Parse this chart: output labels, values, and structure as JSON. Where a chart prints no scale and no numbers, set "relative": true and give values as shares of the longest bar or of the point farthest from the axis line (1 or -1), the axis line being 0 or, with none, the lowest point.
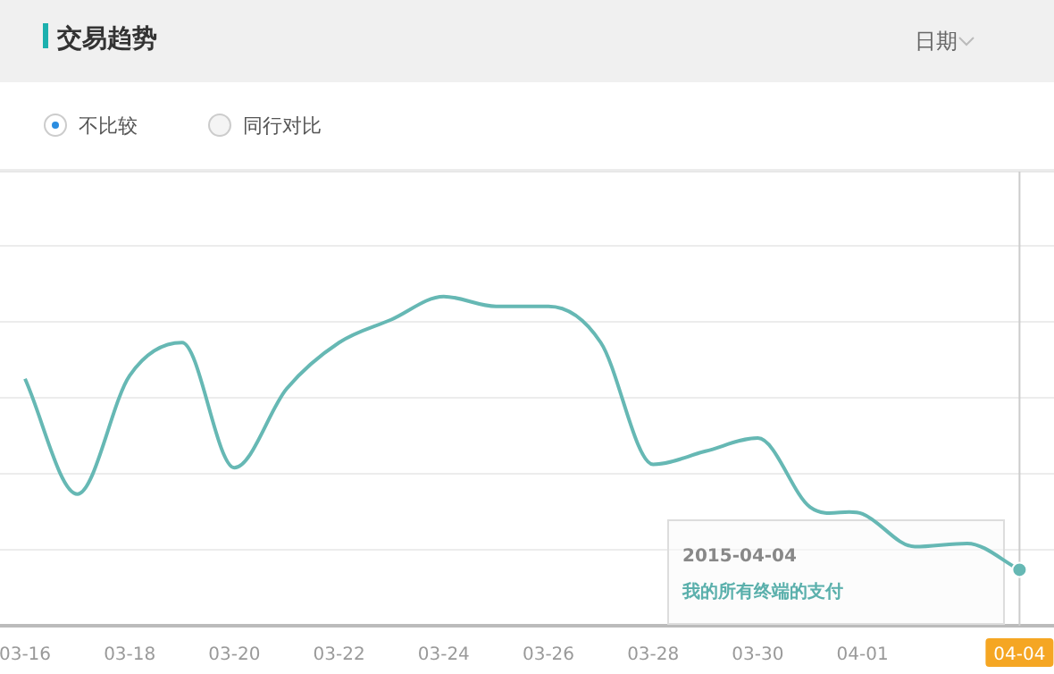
{
  "chart_data": {
    "type": "line",
    "title": "交易趋势",
    "annotations": [
      "日期",
      "不比较",
      "同行对比",
      "2015-04-04",
      "我的所有终端的支付"
    ],
    "categories": [
      "03-16",
      null,
      "03-18",
      null,
      "03-20",
      null,
      "03-22",
      null,
      "03-24",
      null,
      "03-26",
      null,
      "03-28",
      null,
      "03-30",
      null,
      "04-01",
      null,
      null,
      "04-04"
    ],
    "relative": true,
    "grid": "y",
    "marker": "none",
    "line_style": "solid",
    "ref_lines": [
      {
        "axis": "x",
        "value": "04-04",
        "color": "#cccccc"
      }
    ],
    "series": [
      {
        "color": "#66b8b4",
        "values": [
          0.75,
          0.4,
          0.76,
          0.86,
          0.48,
          0.72,
          0.86,
          0.93,
          1,
          0.97,
          0.97,
          0.86,
          0.49,
          0.53,
          0.57,
          0.36,
          0.34,
          0.24,
          0.25,
          0.17
        ]
      }
    ]
  }
}
